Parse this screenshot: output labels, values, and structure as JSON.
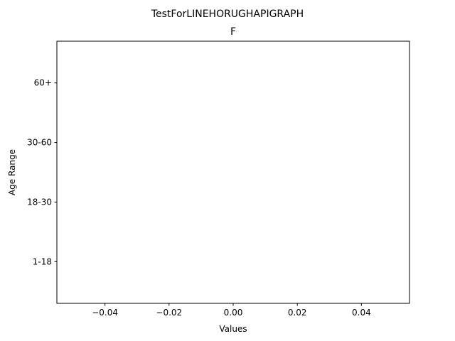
{
  "chart_data": {
    "type": "bar",
    "orientation": "horizontal",
    "suptitle": "TestForLINEHORUGHAPIGRAPH",
    "title": "F",
    "xlabel": "Values",
    "ylabel": "Age Range",
    "categories": [
      "1-18",
      "18-30",
      "30-60",
      "60+"
    ],
    "series": [
      {
        "values": [
          0,
          0,
          0,
          0
        ]
      }
    ],
    "xlim": [
      -0.055,
      0.055
    ],
    "xticks": [
      -0.04,
      -0.02,
      0.0,
      0.02,
      0.04
    ],
    "xtick_labels": [
      "−0.04",
      "−0.02",
      "0.00",
      "0.02",
      "0.04"
    ],
    "grid": false,
    "legend": "none",
    "colors": {
      "axes": "#000000",
      "background": "#ffffff"
    }
  }
}
